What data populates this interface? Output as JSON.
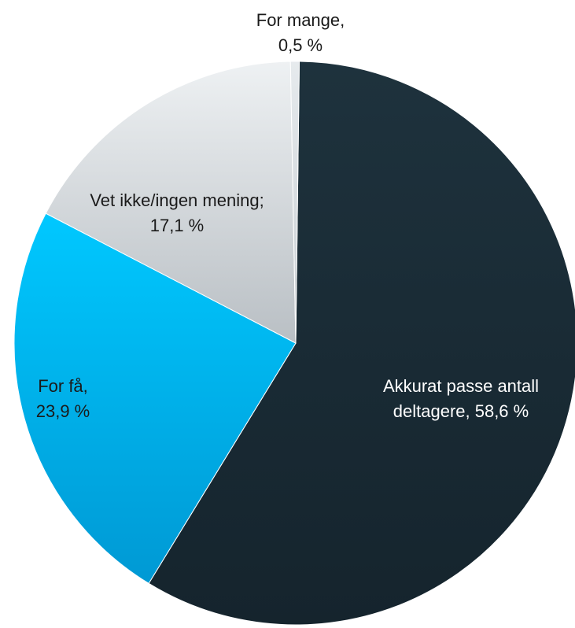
{
  "chart_data": {
    "type": "pie",
    "title": "",
    "slices": [
      {
        "name": "Akkurat passe antall deltagere",
        "value": 58.6,
        "label_lines": [
          "Akkurat passe antall",
          "deltagere, 58,6 %"
        ],
        "color": "#1a2b35",
        "label_color": "#ffffff"
      },
      {
        "name": "For få",
        "value": 23.9,
        "label_lines": [
          "For få,",
          "23,9 %"
        ],
        "color": "#00b4f0",
        "label_color": "#1a1a1a"
      },
      {
        "name": "Vet ikke/ingen mening",
        "value": 17.1,
        "label_lines": [
          "Vet ikke/ingen mening;",
          "17,1 %"
        ],
        "color": "#d9dde0",
        "label_color": "#1a1a1a"
      },
      {
        "name": "For mange",
        "value": 0.5,
        "label_lines": [
          "For mange,",
          "0,5 %"
        ],
        "color": "#cfd4d8",
        "label_color": "#1a1a1a"
      }
    ],
    "legend": "none"
  }
}
